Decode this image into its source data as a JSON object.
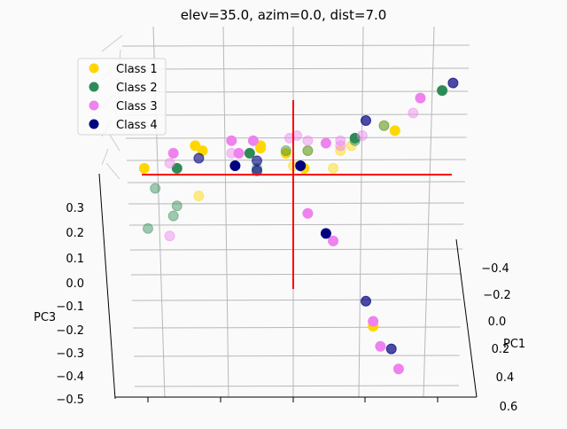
{
  "chart_data": {
    "type": "scatter",
    "projection": "3d",
    "title": "elev=35.0, azim=0.0, dist=7.0",
    "axes": {
      "x": {
        "label": "PC1",
        "ticks": [
          "−0.4",
          "−0.2",
          "0.0",
          "0.2",
          "0.4",
          "0.6"
        ]
      },
      "z": {
        "label": "PC3",
        "ticks": [
          "0.3",
          "0.2",
          "0.1",
          "0.0",
          "−0.1",
          "−0.2",
          "−0.3",
          "−0.4",
          "−0.5"
        ]
      },
      "y": {
        "label": "",
        "ticks": []
      }
    },
    "grid": true,
    "legend_position": "upper-left",
    "crosshair_color": "#ff0000",
    "series": [
      {
        "name": "Class 1",
        "color": "#FFD700",
        "points": [
          [
            -0.41,
            0.46,
            1
          ],
          [
            -0.27,
            0.55,
            1
          ],
          [
            -0.25,
            0.53,
            1
          ],
          [
            -0.09,
            0.55,
            1
          ],
          [
            -0.09,
            0.54,
            1
          ],
          [
            -0.02,
            0.52,
            1
          ],
          [
            -0.26,
            0.35,
            0.45
          ],
          [
            0.0,
            0.47,
            0.45
          ],
          [
            0.03,
            0.46,
            1
          ],
          [
            0.11,
            0.46,
            0.45
          ],
          [
            0.13,
            0.53,
            0.45
          ],
          [
            0.04,
            0.53,
            0.45
          ],
          [
            0.16,
            0.55,
            0.45
          ],
          [
            0.25,
            0.63,
            0.45
          ],
          [
            0.28,
            0.61,
            1
          ],
          [
            0.22,
            -0.17,
            1
          ]
        ]
      },
      {
        "name": "Class 2",
        "color": "#2E8B57",
        "points": [
          [
            -0.32,
            0.46,
            1
          ],
          [
            -0.12,
            0.52,
            1
          ],
          [
            -0.1,
            0.46,
            0.45
          ],
          [
            -0.38,
            0.38,
            0.45
          ],
          [
            -0.32,
            0.31,
            0.45
          ],
          [
            -0.33,
            0.27,
            0.45
          ],
          [
            -0.4,
            0.22,
            0.45
          ],
          [
            -0.02,
            0.53,
            0.45
          ],
          [
            0.04,
            0.53,
            0.45
          ],
          [
            0.17,
            0.58,
            1
          ],
          [
            0.17,
            0.57,
            0.45
          ],
          [
            0.25,
            0.63,
            0.45
          ],
          [
            0.41,
            0.77,
            1
          ]
        ]
      },
      {
        "name": "Class 3",
        "color": "#EE82EE",
        "points": [
          [
            -0.33,
            0.52,
            1
          ],
          [
            -0.34,
            0.48,
            0.45
          ],
          [
            -0.17,
            0.57,
            1
          ],
          [
            -0.11,
            0.57,
            1
          ],
          [
            -0.15,
            0.52,
            1
          ],
          [
            -0.17,
            0.52,
            0.45
          ],
          [
            -0.01,
            0.58,
            0.45
          ],
          [
            0.01,
            0.59,
            0.45
          ],
          [
            0.04,
            0.57,
            0.45
          ],
          [
            0.09,
            0.56,
            1
          ],
          [
            0.13,
            0.57,
            0.45
          ],
          [
            0.13,
            0.55,
            0.45
          ],
          [
            0.19,
            0.59,
            0.45
          ],
          [
            0.33,
            0.68,
            0.45
          ],
          [
            0.35,
            0.74,
            1
          ],
          [
            0.04,
            0.28,
            1
          ],
          [
            0.11,
            0.17,
            1
          ],
          [
            0.22,
            -0.15,
            1
          ],
          [
            0.24,
            -0.25,
            1
          ],
          [
            0.29,
            -0.34,
            1
          ],
          [
            -0.34,
            0.19,
            0.45
          ]
        ]
      },
      {
        "name": "Class 4",
        "color": "#000080",
        "points": [
          [
            -0.26,
            0.5,
            0.6
          ],
          [
            -0.16,
            0.47,
            1
          ],
          [
            -0.1,
            0.49,
            0.6
          ],
          [
            -0.1,
            0.45,
            0.6
          ],
          [
            0.02,
            0.47,
            1
          ],
          [
            0.2,
            0.65,
            0.7
          ],
          [
            0.44,
            0.8,
            0.7
          ],
          [
            0.09,
            0.2,
            1
          ],
          [
            0.2,
            -0.07,
            0.7
          ],
          [
            0.27,
            -0.26,
            0.7
          ]
        ]
      }
    ]
  }
}
